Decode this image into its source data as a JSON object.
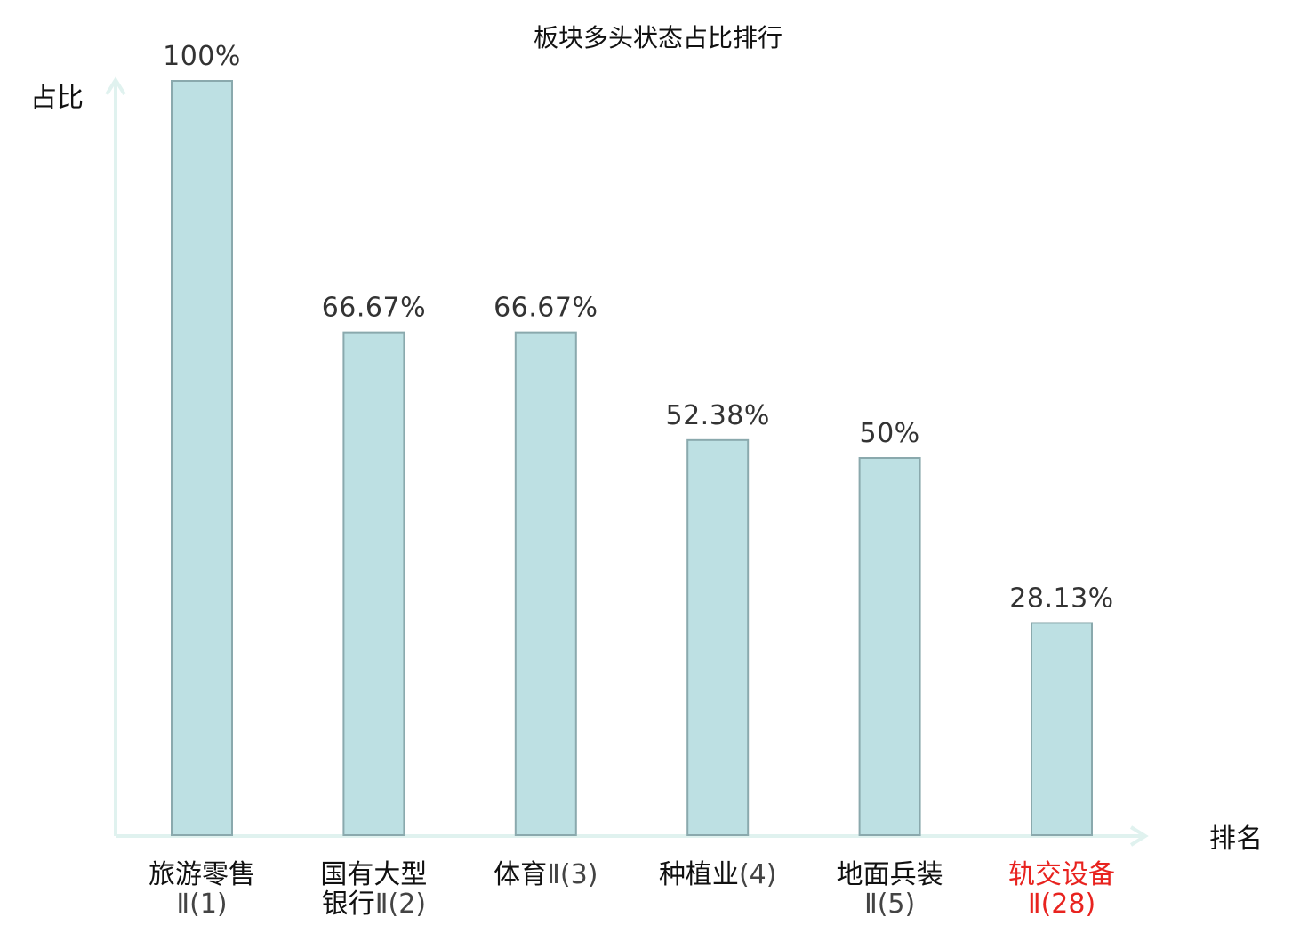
{
  "chart_data": {
    "type": "bar",
    "title": "板块多头状态占比排行",
    "xlabel": "排名",
    "ylabel": "占比",
    "ylim": [
      0,
      100
    ],
    "grid": false,
    "categories": [
      {
        "lines": [
          {
            "cn": "旅游零售",
            "num": ""
          },
          {
            "cn": "",
            "num": "Ⅱ(1)"
          }
        ],
        "highlight": false
      },
      {
        "lines": [
          {
            "cn": "国有大型",
            "num": ""
          },
          {
            "cn": "银行",
            "num": "Ⅱ(2)"
          }
        ],
        "highlight": false
      },
      {
        "lines": [
          {
            "cn": "体育",
            "num": "Ⅱ(3)"
          }
        ],
        "highlight": false
      },
      {
        "lines": [
          {
            "cn": "种植业",
            "num": "(4)"
          }
        ],
        "highlight": false
      },
      {
        "lines": [
          {
            "cn": "地面兵装",
            "num": ""
          },
          {
            "cn": "",
            "num": "Ⅱ(5)"
          }
        ],
        "highlight": false
      },
      {
        "lines": [
          {
            "cn": "轨交设备",
            "num": ""
          },
          {
            "cn": "",
            "num": "Ⅱ(28)"
          }
        ],
        "highlight": true
      }
    ],
    "values": [
      100,
      66.67,
      66.67,
      52.38,
      50,
      28.13
    ],
    "value_labels": [
      "100%",
      "66.67%",
      "66.67%",
      "52.38%",
      "50%",
      "28.13%"
    ],
    "colors": {
      "bar_fill": "#bde0e3",
      "bar_stroke": "#8aa9ad",
      "axis": "#e0f2ef",
      "highlight_text": "#e8231f"
    }
  }
}
